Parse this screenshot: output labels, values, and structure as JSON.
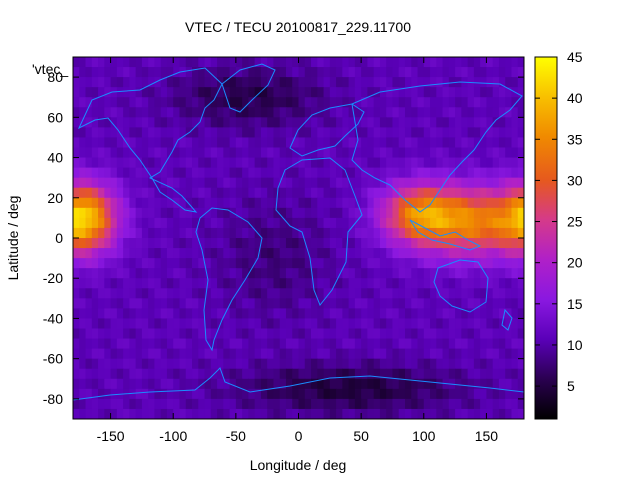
{
  "chart_data": {
    "type": "heatmap",
    "title": "VTEC / TECU 20100817_229.11700",
    "key_label": "'vtec_",
    "xlabel": "Longitude / deg",
    "ylabel": "Latitude / deg",
    "xlim": [
      -180,
      180
    ],
    "ylim": [
      -90,
      90
    ],
    "x_ticks": [
      "-150",
      "-100",
      "-50",
      "0",
      "50",
      "100",
      "150"
    ],
    "y_ticks": [
      "-80",
      "-60",
      "-40",
      "-20",
      "0",
      "20",
      "40",
      "60",
      "80"
    ],
    "colorbar": {
      "range": [
        1,
        45
      ],
      "ticks": [
        "5",
        "10",
        "15",
        "20",
        "25",
        "30",
        "35",
        "40",
        "45"
      ]
    },
    "colors": {
      "coastline": "#1a8cff",
      "palette": [
        "#000000",
        "#2a0050",
        "#5a00b8",
        "#8a18e0",
        "#b020c8",
        "#d53a8a",
        "#e6591e",
        "#f08a00",
        "#f8c000",
        "#ffff00"
      ]
    },
    "features": {
      "bands": [
        {
          "lon": -170,
          "lat": 10,
          "value": 36,
          "sx": 25,
          "sy": 17
        },
        {
          "lon": 140,
          "lat": 8,
          "value": 33,
          "sx": 45,
          "sy": 17
        },
        {
          "lon": 95,
          "lat": 12,
          "value": 30,
          "sx": 30,
          "sy": 15
        }
      ],
      "lows": [
        {
          "lon": -40,
          "lat": 70,
          "value": 4,
          "sx": 60,
          "sy": 15
        },
        {
          "lon": -20,
          "lat": -10,
          "value": 7,
          "sx": 45,
          "sy": 30
        },
        {
          "lon": 40,
          "lat": -75,
          "value": 3,
          "sx": 90,
          "sy": 12
        }
      ],
      "background": 11
    }
  }
}
